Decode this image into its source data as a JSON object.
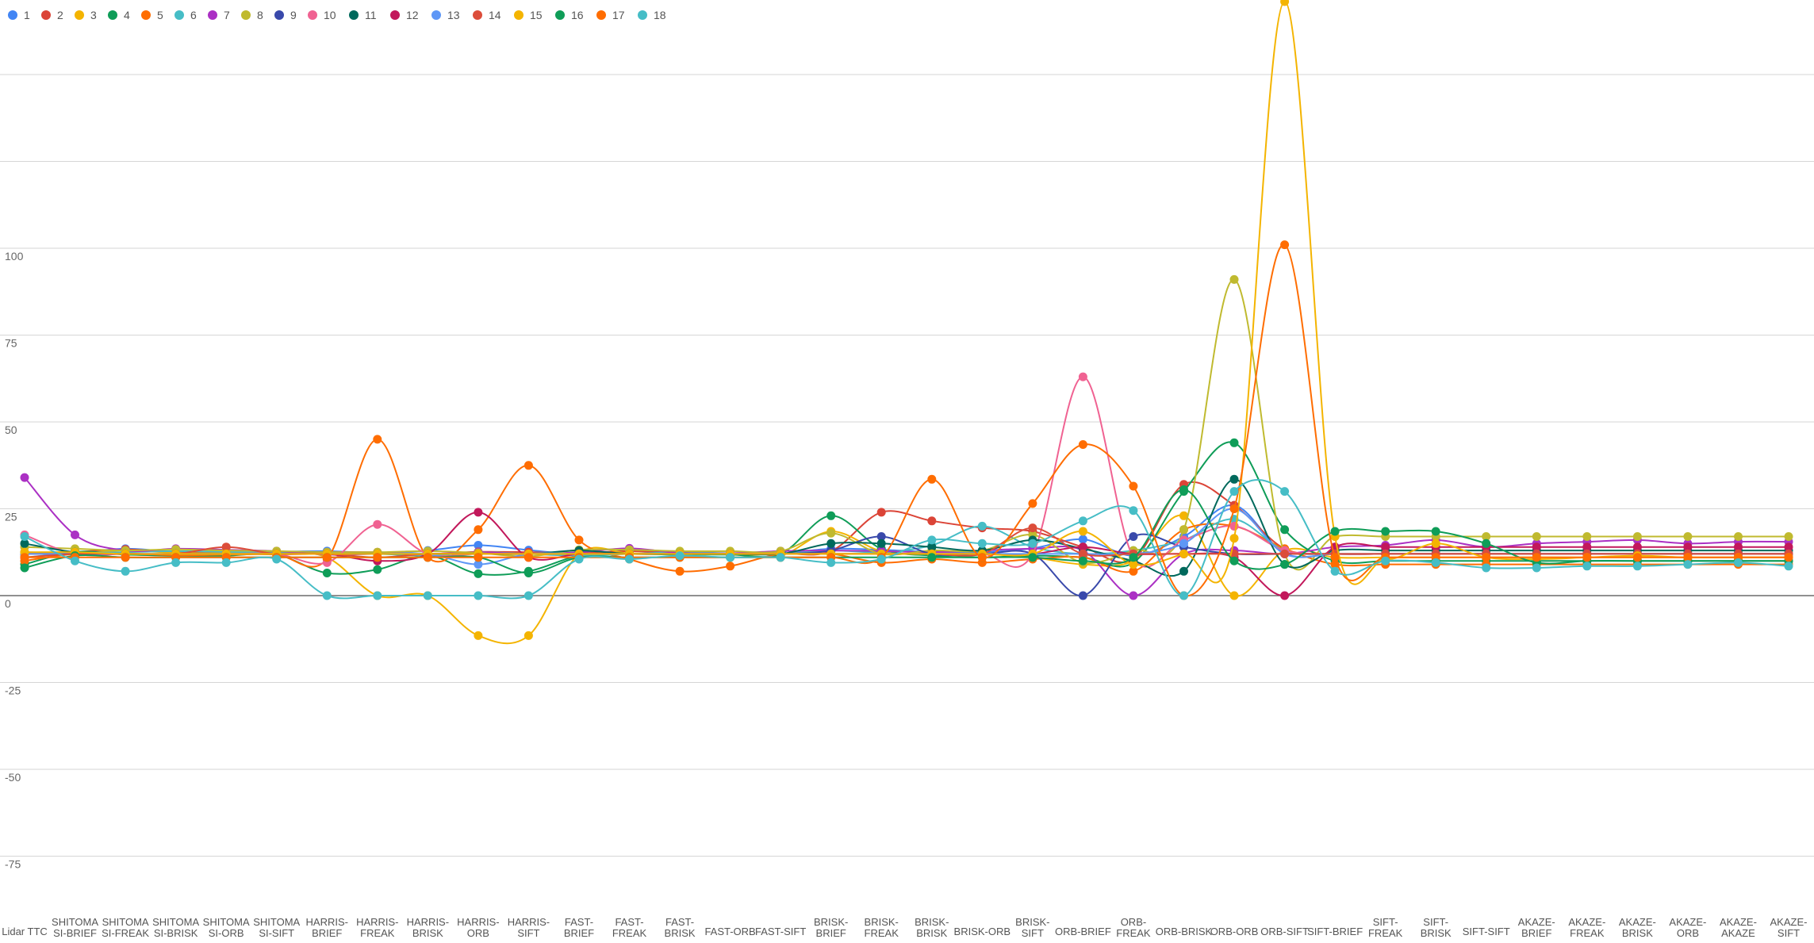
{
  "chart_data": {
    "type": "line",
    "title": "",
    "xlabel": "",
    "ylabel": "",
    "ylim": [
      -88,
      172
    ],
    "yticks": [
      -75,
      -50,
      -25,
      0,
      25,
      50,
      75,
      100
    ],
    "grid": true,
    "smooth": true,
    "legend_position": "top-left",
    "categories": [
      [
        "Lidar TTC"
      ],
      [
        "SHITOMA",
        "SI-BRIEF"
      ],
      [
        "SHITOMA",
        "SI-FREAK"
      ],
      [
        "SHITOMA",
        "SI-BRISK"
      ],
      [
        "SHITOMA",
        "SI-ORB"
      ],
      [
        "SHITOMA",
        "SI-SIFT"
      ],
      [
        "HARRIS-",
        "BRIEF"
      ],
      [
        "HARRIS-",
        "FREAK"
      ],
      [
        "HARRIS-",
        "BRISK"
      ],
      [
        "HARRIS-",
        "ORB"
      ],
      [
        "HARRIS-",
        "SIFT"
      ],
      [
        "FAST-",
        "BRIEF"
      ],
      [
        "FAST-",
        "FREAK"
      ],
      [
        "FAST-",
        "BRISK"
      ],
      [
        "FAST-ORB"
      ],
      [
        "FAST-SIFT"
      ],
      [
        "BRISK-",
        "BRIEF"
      ],
      [
        "BRISK-",
        "FREAK"
      ],
      [
        "BRISK-",
        "BRISK"
      ],
      [
        "BRISK-ORB"
      ],
      [
        "BRISK-",
        "SIFT"
      ],
      [
        "ORB-BRIEF"
      ],
      [
        "ORB-",
        "FREAK"
      ],
      [
        "ORB-BRISK"
      ],
      [
        "ORB-ORB"
      ],
      [
        "ORB-SIFT"
      ],
      [
        "SIFT-BRIEF"
      ],
      [
        "SIFT-",
        "FREAK"
      ],
      [
        "SIFT-",
        "BRISK"
      ],
      [
        "SIFT-SIFT"
      ],
      [
        "AKAZE-",
        "BRIEF"
      ],
      [
        "AKAZE-",
        "FREAK"
      ],
      [
        "AKAZE-",
        "BRISK"
      ],
      [
        "AKAZE-",
        "ORB"
      ],
      [
        "AKAZE-",
        "AKAZE"
      ],
      [
        "AKAZE-",
        "SIFT"
      ]
    ],
    "series": [
      {
        "name": "1",
        "color": "#4285f4",
        "values": [
          12.5,
          12.4,
          13.5,
          12.6,
          12.4,
          12.6,
          12.8,
          12.3,
          13.0,
          14.5,
          13.1,
          12.0,
          13.0,
          12.3,
          12.0,
          12.1,
          13.5,
          13.2,
          12.6,
          12.5,
          13.6,
          16.2,
          11.5,
          17.0,
          26.0,
          12.2,
          12.0,
          12.0,
          12.0,
          12.0,
          12.0,
          12.0,
          12.0,
          12.0,
          12.0,
          12.0
        ]
      },
      {
        "name": "2",
        "color": "#db4437",
        "values": [
          12.3,
          12.6,
          13.3,
          12.6,
          12.6,
          12.4,
          12.5,
          12.5,
          12.0,
          12.6,
          12.5,
          12.2,
          12.8,
          12.1,
          12.0,
          12.2,
          12.8,
          24.0,
          21.5,
          19.5,
          18.5,
          14.0,
          10.5,
          32.0,
          26.0,
          13.5,
          12.0,
          12.0,
          12.0,
          12.0,
          12.0,
          12.0,
          12.0,
          12.0,
          12.0,
          12.0
        ]
      },
      {
        "name": "3",
        "color": "#f4b400",
        "values": [
          12.0,
          12.2,
          13.0,
          12.3,
          12.2,
          12.5,
          11.0,
          0,
          0,
          -11.5,
          -11.5,
          12.0,
          12.2,
          12.0,
          12.0,
          11.5,
          18.5,
          12.8,
          12.0,
          12.0,
          11.0,
          9.0,
          10.0,
          23.0,
          0,
          13.0,
          11.0,
          11.0,
          11.0,
          11.0,
          11.0,
          11.0,
          11.0,
          11.0,
          11.0,
          11.0
        ]
      },
      {
        "name": "4",
        "color": "#0f9d58",
        "values": [
          9.0,
          12.6,
          11.8,
          11.5,
          11.5,
          11.8,
          6.5,
          7.5,
          11.5,
          6.3,
          7.0,
          11.5,
          12.0,
          11.8,
          11.8,
          12.0,
          23.0,
          13.5,
          11.5,
          11.0,
          11.5,
          11.0,
          9.5,
          30.0,
          44.0,
          19.0,
          10.0,
          10.0,
          10.0,
          10.0,
          10.0,
          10.0,
          10.0,
          10.0,
          10.0,
          10.0
        ]
      },
      {
        "name": "5",
        "color": "#ff6d01",
        "values": [
          10.0,
          12.0,
          12.2,
          11.6,
          11.8,
          11.8,
          10.5,
          45.0,
          11.0,
          19.0,
          37.5,
          16.0,
          10.5,
          7.0,
          8.5,
          12.0,
          12.0,
          9.5,
          10.5,
          9.5,
          10.5,
          11.0,
          7.0,
          19.0,
          20.0,
          13.5,
          9.0,
          9.0,
          9.0,
          9.0,
          9.0,
          9.0,
          9.0,
          9.0,
          9.0,
          9.0
        ]
      },
      {
        "name": "6",
        "color": "#46bdc6",
        "values": [
          11.0,
          12.2,
          12.5,
          12.8,
          12.6,
          12.4,
          12.0,
          12.0,
          11.5,
          12.5,
          12.0,
          11.5,
          12.0,
          12.5,
          12.2,
          12.0,
          13.0,
          12.5,
          14.5,
          20.0,
          14.0,
          12.0,
          13.0,
          16.0,
          22.0,
          13.0,
          12.0,
          12.0,
          12.0,
          12.0,
          12.0,
          12.0,
          12.0,
          12.0,
          12.0,
          12.0
        ]
      },
      {
        "name": "7",
        "color": "#ab30c4",
        "values": [
          34.0,
          17.5,
          13.0,
          13.5,
          13.2,
          12.8,
          11.8,
          12.0,
          12.0,
          12.5,
          12.0,
          12.5,
          13.6,
          12.3,
          12.2,
          12.8,
          13.0,
          12.8,
          12.5,
          13.0,
          13.5,
          13.0,
          0,
          12.0,
          13.0,
          12.0,
          14.0,
          14.5,
          16.0,
          14.0,
          15.0,
          15.5,
          16.0,
          15.0,
          15.5,
          15.5
        ]
      },
      {
        "name": "8",
        "color": "#c0ba2f",
        "values": [
          14.0,
          13.5,
          13.0,
          13.3,
          13.0,
          12.8,
          12.5,
          12.5,
          12.8,
          12.3,
          11.3,
          13.2,
          13.2,
          12.8,
          12.8,
          12.8,
          18.0,
          12.0,
          13.0,
          13.0,
          17.5,
          9.5,
          13.0,
          19.0,
          91.0,
          12.0,
          17.0,
          17.0,
          17.0,
          17.0,
          17.0,
          17.0,
          17.0,
          17.0,
          17.0,
          17.0
        ]
      },
      {
        "name": "9",
        "color": "#3949ab",
        "values": [
          12.0,
          12.0,
          12.0,
          12.0,
          12.0,
          12.0,
          12.0,
          12.0,
          12.0,
          12.0,
          12.0,
          12.0,
          12.0,
          12.0,
          12.0,
          12.0,
          13.0,
          17.0,
          12.0,
          12.0,
          12.0,
          0,
          17.0,
          14.0,
          12.0,
          12.0,
          12.0,
          12.0,
          12.0,
          12.0,
          12.0,
          12.0,
          12.0,
          12.0,
          12.0,
          12.0
        ]
      },
      {
        "name": "10",
        "color": "#f06292",
        "values": [
          17.5,
          12.0,
          12.0,
          12.0,
          12.0,
          12.0,
          9.5,
          20.5,
          12.0,
          12.0,
          12.0,
          12.0,
          12.0,
          12.0,
          12.0,
          12.0,
          12.0,
          12.0,
          12.0,
          12.0,
          12.0,
          63.0,
          11.0,
          16.0,
          20.0,
          13.0,
          12.0,
          12.0,
          12.0,
          12.0,
          12.0,
          12.0,
          12.0,
          12.0,
          12.0,
          12.0
        ]
      },
      {
        "name": "11",
        "color": "#00695c",
        "values": [
          15.0,
          12.5,
          12.0,
          12.0,
          12.0,
          12.0,
          12.0,
          12.0,
          12.0,
          12.0,
          12.0,
          13.0,
          12.0,
          12.0,
          12.0,
          12.0,
          15.0,
          15.0,
          14.0,
          13.0,
          16.0,
          13.5,
          10.0,
          7.0,
          33.5,
          9.0,
          13.0,
          13.0,
          13.0,
          13.0,
          13.0,
          13.0,
          13.0,
          13.0,
          13.0,
          13.0
        ]
      },
      {
        "name": "12",
        "color": "#c2185b",
        "values": [
          12.0,
          12.0,
          12.0,
          12.0,
          12.0,
          12.0,
          12.0,
          10.0,
          12.0,
          24.0,
          11.0,
          12.0,
          12.0,
          12.0,
          12.0,
          12.0,
          12.0,
          12.0,
          12.0,
          12.0,
          12.0,
          14.0,
          12.0,
          12.0,
          11.0,
          0,
          14.0,
          14.0,
          14.0,
          14.0,
          14.0,
          14.0,
          14.0,
          14.0,
          14.0,
          14.0
        ]
      },
      {
        "name": "13",
        "color": "#5e97f6",
        "values": [
          12.0,
          12.0,
          12.0,
          12.0,
          12.0,
          12.0,
          12.0,
          12.0,
          12.0,
          9.0,
          12.0,
          12.0,
          12.0,
          12.0,
          12.0,
          12.0,
          12.0,
          12.0,
          12.0,
          12.0,
          12.0,
          12.0,
          12.0,
          15.0,
          25.0,
          12.0,
          12.0,
          12.0,
          12.0,
          12.0,
          12.0,
          12.0,
          12.0,
          12.0,
          12.0,
          12.0
        ]
      },
      {
        "name": "14",
        "color": "#dc4d3a",
        "values": [
          11.0,
          12.0,
          12.0,
          12.0,
          14.0,
          12.0,
          12.0,
          11.0,
          12.0,
          12.0,
          12.0,
          12.0,
          12.0,
          12.0,
          12.0,
          12.0,
          12.0,
          12.0,
          12.0,
          12.0,
          19.5,
          12.0,
          12.0,
          12.0,
          12.0,
          12.0,
          12.0,
          12.0,
          12.0,
          12.0,
          12.0,
          12.0,
          12.0,
          12.0,
          12.0,
          12.0
        ]
      },
      {
        "name": "15",
        "color": "#f4b400",
        "values": [
          12.5,
          12.5,
          12.0,
          12.0,
          12.0,
          12.0,
          12.0,
          12.0,
          12.0,
          12.0,
          12.0,
          12.0,
          12.0,
          12.0,
          12.0,
          12.0,
          12.0,
          12.0,
          12.0,
          12.0,
          12.0,
          18.5,
          9.0,
          12.0,
          16.5,
          171.0,
          17.0,
          10.5,
          15.0,
          11.0,
          10.5,
          11.0,
          11.5,
          11.0,
          11.0,
          11.0
        ]
      },
      {
        "name": "16",
        "color": "#0f9d58",
        "values": [
          8.0,
          11.5,
          11.0,
          11.0,
          11.0,
          11.0,
          11.0,
          11.0,
          11.0,
          11.0,
          6.5,
          11.0,
          11.0,
          11.0,
          11.0,
          11.0,
          11.0,
          11.0,
          11.0,
          11.0,
          11.0,
          10.0,
          11.0,
          30.5,
          10.0,
          9.0,
          18.5,
          18.5,
          18.5,
          15.0,
          9.5,
          10.0,
          10.0,
          10.0,
          10.0,
          10.0
        ]
      },
      {
        "name": "17",
        "color": "#ff6d01",
        "values": [
          11.0,
          11.0,
          11.0,
          11.0,
          11.0,
          11.0,
          11.0,
          11.0,
          11.0,
          11.0,
          11.0,
          11.0,
          11.0,
          11.0,
          11.0,
          11.0,
          11.0,
          11.0,
          33.5,
          11.0,
          26.5,
          43.5,
          31.5,
          0,
          25.0,
          101.0,
          11.0,
          11.0,
          11.0,
          11.0,
          11.0,
          11.0,
          11.0,
          11.0,
          11.0,
          11.0
        ]
      },
      {
        "name": "18",
        "color": "#46bdc6",
        "values": [
          17.0,
          10.0,
          7.0,
          9.5,
          9.5,
          10.5,
          0,
          0,
          0,
          0,
          0,
          10.5,
          10.5,
          11.5,
          11.0,
          11.0,
          9.5,
          10.5,
          16.0,
          15.0,
          15.0,
          21.5,
          24.5,
          0,
          30.0,
          30.0,
          7.0,
          10.0,
          9.5,
          8.0,
          8.0,
          8.5,
          8.5,
          9.0,
          9.5,
          8.5
        ]
      }
    ]
  }
}
